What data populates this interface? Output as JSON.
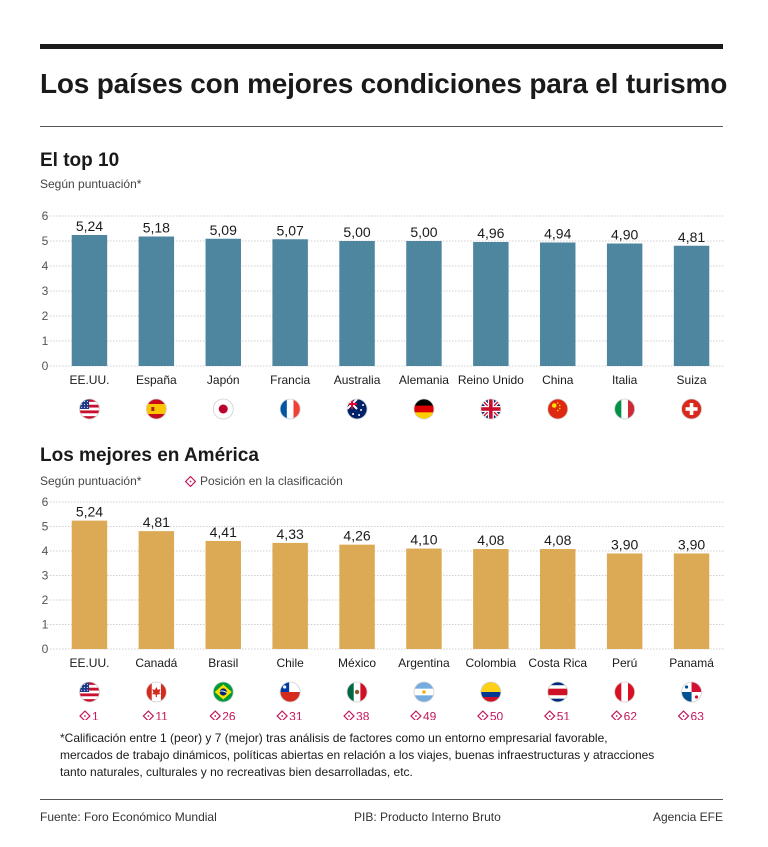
{
  "title": "Los países con mejores condiciones para el turismo",
  "footnote": "*Calificación entre 1 (peor) y 7 (mejor) tras análisis de factores como un entorno empresarial favorable, mercados de trabajo dinámicos, políticas abiertas en relación a los viajes, buenas infraestructuras y atracciones tanto naturales, culturales y no recreativas bien desarrolladas, etc.",
  "footer": {
    "source": "Fuente: Foro Económico Mundial",
    "pib": "PIB: Producto Interno Bruto",
    "agency": "Agencia EFE"
  },
  "chart_data": [
    {
      "type": "bar",
      "title": "El top 10",
      "subtitle": "Según puntuación*",
      "categories": [
        "EE.UU.",
        "España",
        "Japón",
        "Francia",
        "Australia",
        "Alemania",
        "Reino Unido",
        "China",
        "Italia",
        "Suiza"
      ],
      "values": [
        5.24,
        5.18,
        5.09,
        5.07,
        5.0,
        5.0,
        4.96,
        4.94,
        4.9,
        4.81
      ],
      "value_labels": [
        "5,24",
        "5,18",
        "5,09",
        "5,07",
        "5,00",
        "5,00",
        "4,96",
        "4,94",
        "4,90",
        "4,81"
      ],
      "flags": [
        "us-flag-icon",
        "spain-flag-icon",
        "japan-flag-icon",
        "france-flag-icon",
        "australia-flag-icon",
        "germany-flag-icon",
        "uk-flag-icon",
        "china-flag-icon",
        "italy-flag-icon",
        "switzerland-flag-icon"
      ],
      "yticks": [
        0,
        1,
        2,
        3,
        4,
        5,
        6
      ],
      "ylim": [
        0,
        6
      ],
      "grid": true,
      "bar_color": "#4e869f"
    },
    {
      "type": "bar",
      "title": "Los mejores en América",
      "subtitle": "Según puntuación*",
      "legend": "Posición en la clasificación",
      "categories": [
        "EE.UU.",
        "Canadá",
        "Brasil",
        "Chile",
        "México",
        "Argentina",
        "Colombia",
        "Costa Rica",
        "Perú",
        "Panamá"
      ],
      "values": [
        5.24,
        4.81,
        4.41,
        4.33,
        4.26,
        4.1,
        4.08,
        4.08,
        3.9,
        3.9
      ],
      "value_labels": [
        "5,24",
        "4,81",
        "4,41",
        "4,33",
        "4,26",
        "4,10",
        "4,08",
        "4,08",
        "3,90",
        "3,90"
      ],
      "ranks": [
        "1",
        "11",
        "26",
        "31",
        "38",
        "49",
        "50",
        "51",
        "62",
        "63"
      ],
      "flags": [
        "us-flag-icon",
        "canada-flag-icon",
        "brazil-flag-icon",
        "chile-flag-icon",
        "mexico-flag-icon",
        "argentina-flag-icon",
        "colombia-flag-icon",
        "costa-rica-flag-icon",
        "peru-flag-icon",
        "panama-flag-icon"
      ],
      "yticks": [
        0,
        1,
        2,
        3,
        4,
        5,
        6
      ],
      "ylim": [
        0,
        6
      ],
      "grid": true,
      "bar_color": "#dcaa55",
      "rank_color": "#c2185b"
    }
  ]
}
